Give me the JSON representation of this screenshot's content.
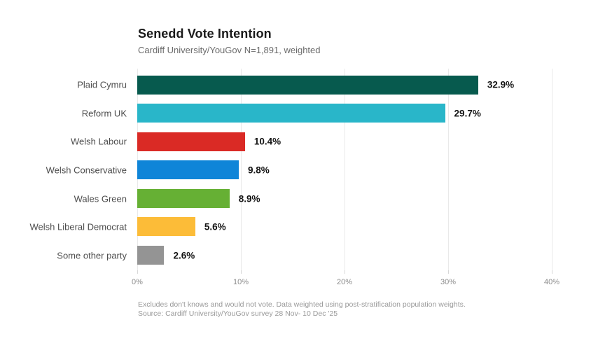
{
  "header": {
    "title": "Senedd Vote Intention",
    "subtitle": "Cardiff University/YouGov N=1,891, weighted"
  },
  "footnote": {
    "line1": "Excludes don't knows and would not vote. Data weighted using post-stratification population weights.",
    "line2": "Source: Cardiff University/YouGov survey 28 Nov- 10 Dec '25"
  },
  "chart_data": {
    "type": "bar",
    "orientation": "horizontal",
    "title": "Senedd Vote Intention",
    "subtitle": "Cardiff University/YouGov N=1,891, weighted",
    "categories": [
      "Plaid Cymru",
      "Reform UK",
      "Welsh Labour",
      "Welsh Conservative",
      "Wales Green",
      "Welsh Liberal Democrat",
      "Some other party"
    ],
    "values": [
      32.9,
      29.7,
      10.4,
      9.8,
      8.9,
      5.6,
      2.6
    ],
    "value_labels": [
      "32.9%",
      "29.7%",
      "10.4%",
      "9.8%",
      "8.9%",
      "5.6%",
      "2.6%"
    ],
    "bar_colors": [
      "#075a4e",
      "#29b6c9",
      "#da2a25",
      "#0f85d8",
      "#66b034",
      "#fcbc38",
      "#949494"
    ],
    "xlabel": "",
    "ylabel": "",
    "xlim": [
      0,
      40
    ],
    "x_tick_values": [
      0,
      10,
      20,
      30,
      40
    ],
    "x_tick_labels": [
      "0%",
      "10%",
      "20%",
      "30%",
      "40%"
    ],
    "grid": true,
    "legend": false
  }
}
